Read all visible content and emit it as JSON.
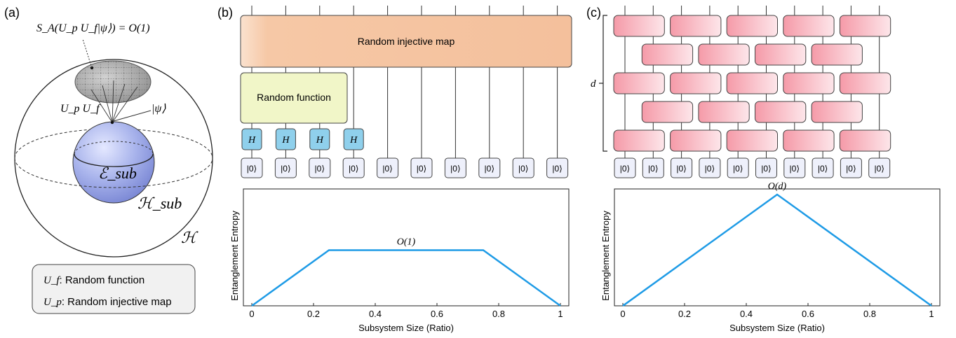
{
  "panels": {
    "a": {
      "label": "(a)",
      "entropy_annotation": "S_A(U_p U_f|ψ⟩) = O(1)",
      "operator_label": "U_p U_f",
      "ket_label": "|ψ⟩",
      "inner_set_label": "ℰ_sub",
      "subspace_label": "ℋ_sub",
      "space_label": "ℋ",
      "legend": {
        "uf_symbol": "U_f",
        "uf_text": ": Random function",
        "up_symbol": "U_p",
        "up_text": ": Random injective map"
      }
    },
    "b": {
      "label": "(b)",
      "injective_block": "Random injective map",
      "function_block": "Random function",
      "hadamard": "H",
      "ket": "|0⟩",
      "qubits": 10,
      "hadamard_count": 4
    },
    "c": {
      "label": "(c)",
      "depth_label": "d",
      "ket": "|0⟩",
      "qubits": 10
    }
  },
  "chart_data": [
    {
      "type": "line",
      "xlabel": "Subsystem Size (Ratio)",
      "ylabel": "Entanglement Entropy",
      "xlim": [
        0,
        1
      ],
      "ylim": [
        0,
        1
      ],
      "xticks": [
        "0",
        "0.2",
        "0.4",
        "0.6",
        "0.8",
        "1"
      ],
      "x": [
        0,
        0.25,
        0.75,
        1
      ],
      "y": [
        0,
        0.5,
        0.5,
        0
      ],
      "annotation": "O(1)",
      "color": "#1e9be6"
    },
    {
      "type": "line",
      "xlabel": "Subsystem Size (Ratio)",
      "ylabel": "Entanglement Entropy",
      "xlim": [
        0,
        1
      ],
      "ylim": [
        0,
        1
      ],
      "xticks": [
        "0",
        "0.2",
        "0.4",
        "0.6",
        "0.8",
        "1"
      ],
      "x": [
        0,
        0.5,
        1
      ],
      "y": [
        0,
        1,
        0
      ],
      "annotation": "O(d)",
      "color": "#1e9be6"
    }
  ]
}
